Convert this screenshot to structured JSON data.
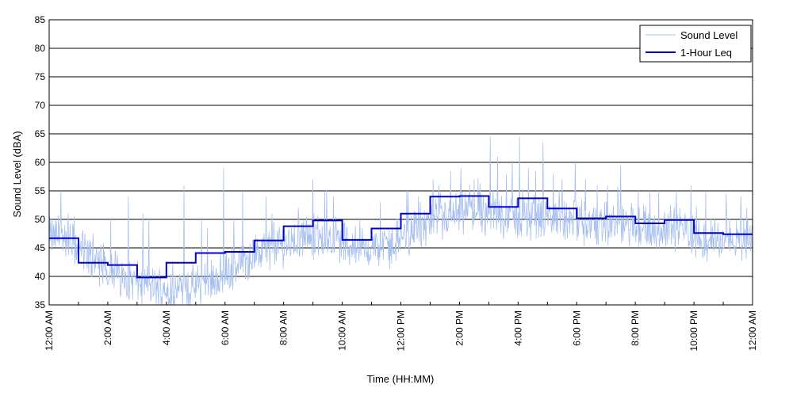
{
  "chart_data": {
    "type": "line",
    "title": "",
    "xlabel": "Time (HH:MM)",
    "ylabel": "Sound Level (dBA)",
    "ylim": [
      35,
      85
    ],
    "yticks": [
      35,
      40,
      45,
      50,
      55,
      60,
      65,
      70,
      75,
      80,
      85
    ],
    "xlim": [
      0,
      24
    ],
    "xticks": [
      {
        "hour": 0,
        "label": "12:00 AM"
      },
      {
        "hour": 2,
        "label": "2:00 AM"
      },
      {
        "hour": 4,
        "label": "4:00 AM"
      },
      {
        "hour": 6,
        "label": "6:00 AM"
      },
      {
        "hour": 8,
        "label": "8:00 AM"
      },
      {
        "hour": 10,
        "label": "10:00 AM"
      },
      {
        "hour": 12,
        "label": "12:00 PM"
      },
      {
        "hour": 14,
        "label": "2:00 PM"
      },
      {
        "hour": 16,
        "label": "4:00 PM"
      },
      {
        "hour": 18,
        "label": "6:00 PM"
      },
      {
        "hour": 20,
        "label": "8:00 PM"
      },
      {
        "hour": 22,
        "label": "10:00 PM"
      },
      {
        "hour": 24,
        "label": "12:00 AM"
      }
    ],
    "grid": "horizontal",
    "legend_position": "top-right",
    "series": [
      {
        "name": "Sound Level",
        "color": "#a8c0f0",
        "style": "thin-line",
        "base_by_hour": [
          47,
          43,
          40,
          38,
          37.5,
          39,
          42,
          45,
          46.5,
          47,
          45,
          45,
          48.5,
          50,
          51.5,
          50.5,
          50,
          50,
          49,
          49,
          48,
          48.5,
          46,
          47
        ],
        "spikes": [
          [
            0.4,
            55
          ],
          [
            0.65,
            51
          ],
          [
            1.5,
            47.5
          ],
          [
            2.1,
            50
          ],
          [
            2.7,
            54
          ],
          [
            3.2,
            51
          ],
          [
            3.4,
            50
          ],
          [
            4.6,
            56
          ],
          [
            5.2,
            50
          ],
          [
            5.4,
            48.5
          ],
          [
            5.95,
            59
          ],
          [
            6.3,
            50
          ],
          [
            6.6,
            55
          ],
          [
            7.4,
            54
          ],
          [
            7.6,
            51
          ],
          [
            8.5,
            52
          ],
          [
            9.0,
            57
          ],
          [
            9.4,
            55
          ],
          [
            9.7,
            54
          ],
          [
            10.6,
            50
          ],
          [
            11.3,
            53
          ],
          [
            12.2,
            55
          ],
          [
            12.6,
            54
          ],
          [
            13.1,
            57
          ],
          [
            13.3,
            56
          ],
          [
            13.7,
            58.5
          ],
          [
            14.05,
            59
          ],
          [
            14.5,
            57
          ],
          [
            15.05,
            64.5
          ],
          [
            15.3,
            61
          ],
          [
            15.6,
            58
          ],
          [
            15.8,
            60
          ],
          [
            16.05,
            64.5
          ],
          [
            16.35,
            59
          ],
          [
            16.6,
            58.5
          ],
          [
            16.85,
            63.5
          ],
          [
            17.2,
            58
          ],
          [
            17.5,
            57
          ],
          [
            17.95,
            60
          ],
          [
            18.3,
            57
          ],
          [
            18.7,
            56
          ],
          [
            19.05,
            56
          ],
          [
            19.5,
            59.5
          ],
          [
            20.1,
            55
          ],
          [
            20.5,
            55
          ],
          [
            20.8,
            55
          ],
          [
            21.4,
            55
          ],
          [
            21.9,
            56
          ],
          [
            22.4,
            55
          ],
          [
            23.1,
            54.5
          ],
          [
            23.6,
            54
          ],
          [
            23.8,
            52
          ]
        ]
      },
      {
        "name": "1-Hour Leq",
        "color": "#0000cc",
        "style": "step",
        "values": [
          46.7,
          42.4,
          42.0,
          39.8,
          42.4,
          44.1,
          44.3,
          46.3,
          48.8,
          49.8,
          46.4,
          48.4,
          51.0,
          54.0,
          54.1,
          52.2,
          53.7,
          51.9,
          50.2,
          50.5,
          49.3,
          49.9,
          47.6,
          47.4
        ]
      }
    ]
  }
}
